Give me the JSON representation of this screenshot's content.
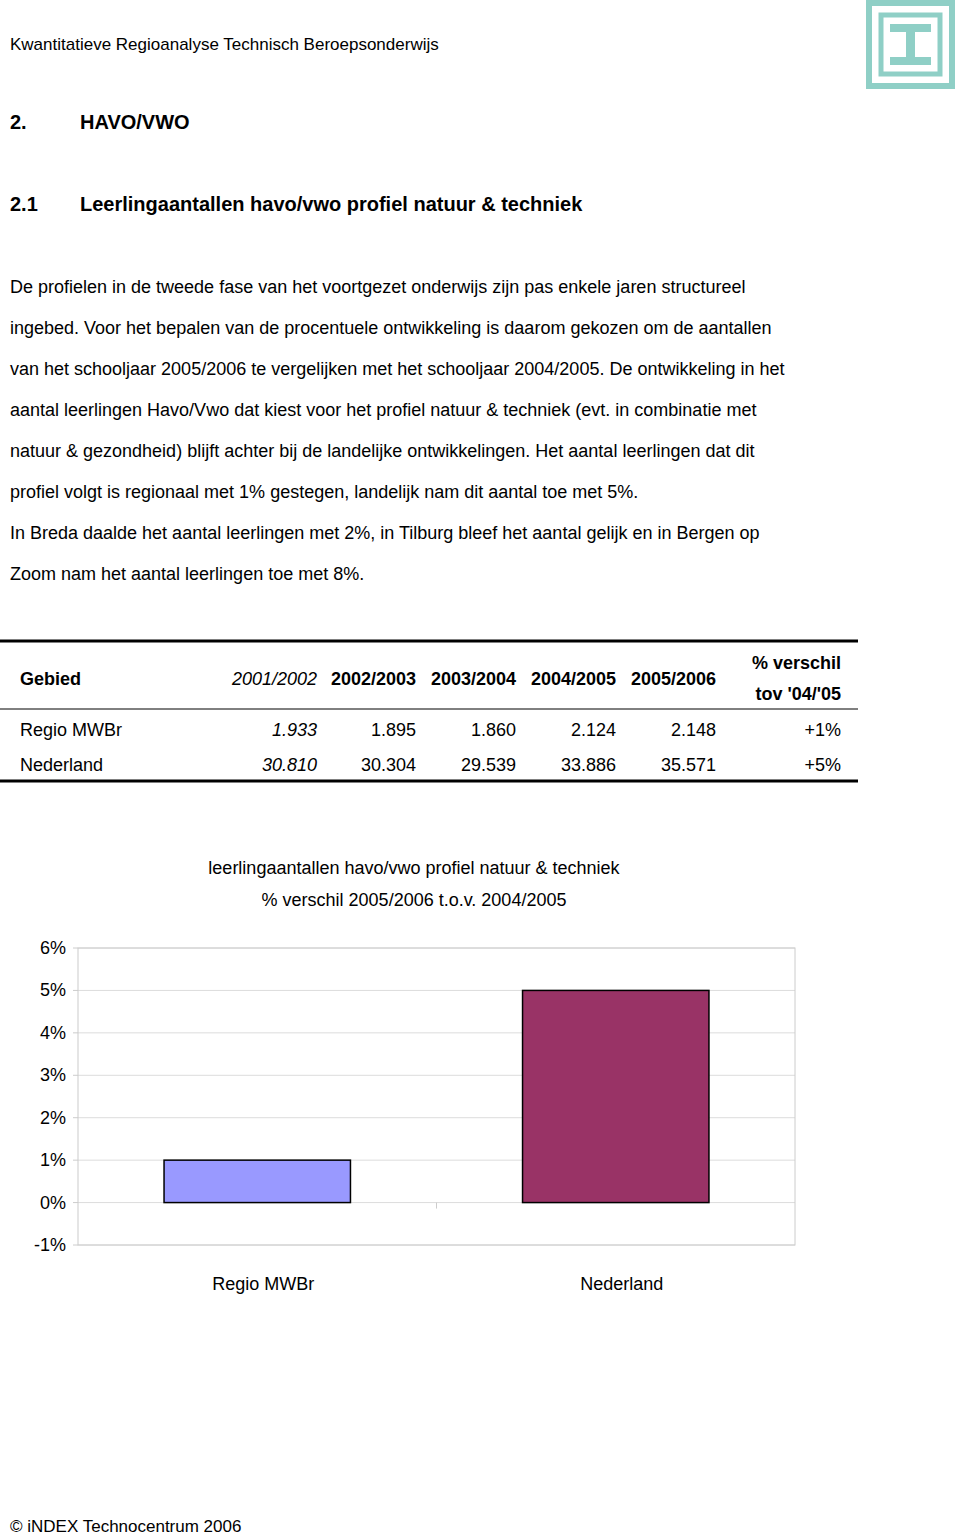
{
  "header": {
    "running_title": "Kwantitatieve Regioanalyse Technisch Beroepsonderwijs"
  },
  "section": {
    "number": "2.",
    "title": "HAVO/VWO"
  },
  "subsection": {
    "number": "2.1",
    "title": "Leerlingaantallen havo/vwo profiel natuur & techniek"
  },
  "paragraph_lines": [
    "De profielen in de tweede fase van het voortgezet onderwijs zijn pas enkele jaren structureel",
    "ingebed. Voor het bepalen van de procentuele ontwikkeling is daarom gekozen om de aantallen",
    "van het schooljaar 2005/2006 te vergelijken met het schooljaar 2004/2005. De ontwikkeling in het",
    "aantal leerlingen Havo/Vwo dat kiest voor het profiel natuur & techniek (evt. in combinatie met",
    "natuur & gezondheid) blijft achter bij de landelijke ontwikkelingen. Het aantal leerlingen dat dit",
    "profiel volgt is regionaal met 1% gestegen, landelijk nam dit aantal toe met 5%.",
    "In Breda daalde het aantal leerlingen met 2%, in Tilburg bleef het aantal gelijk en in Bergen op",
    "Zoom nam het aantal leerlingen toe met 8%."
  ],
  "table": {
    "header": [
      "Gebied",
      "2001/2002",
      "2002/2003",
      "2003/2004",
      "2004/2005",
      "2005/2006",
      [
        "% verschil",
        "tov '04/'05"
      ]
    ],
    "rows": [
      [
        "Regio MWBr",
        "1.933",
        "1.895",
        "1.860",
        "2.124",
        "2.148",
        "+1%"
      ],
      [
        "Nederland",
        "30.810",
        "30.304",
        "29.539",
        "33.886",
        "35.571",
        "+5%"
      ]
    ]
  },
  "chart_data": {
    "type": "bar",
    "title": "leerlingaantallen havo/vwo profiel natuur & techniek",
    "subtitle": "% verschil 2005/2006 t.o.v. 2004/2005",
    "categories": [
      "Regio MWBr",
      "Nederland"
    ],
    "values": [
      1,
      5
    ],
    "colors": [
      "#9999ff",
      "#993366"
    ],
    "ylim": [
      -1,
      6
    ],
    "yticks": [
      {
        "value": -1,
        "label": "-1%"
      },
      {
        "value": 0,
        "label": "0%"
      },
      {
        "value": 1,
        "label": "1%"
      },
      {
        "value": 2,
        "label": "2%"
      },
      {
        "value": 3,
        "label": "3%"
      },
      {
        "value": 4,
        "label": "4%"
      },
      {
        "value": 5,
        "label": "5%"
      },
      {
        "value": 6,
        "label": "6%"
      }
    ],
    "grid": true
  },
  "footer": {
    "text": "© iNDEX Technocentrum 2006"
  }
}
